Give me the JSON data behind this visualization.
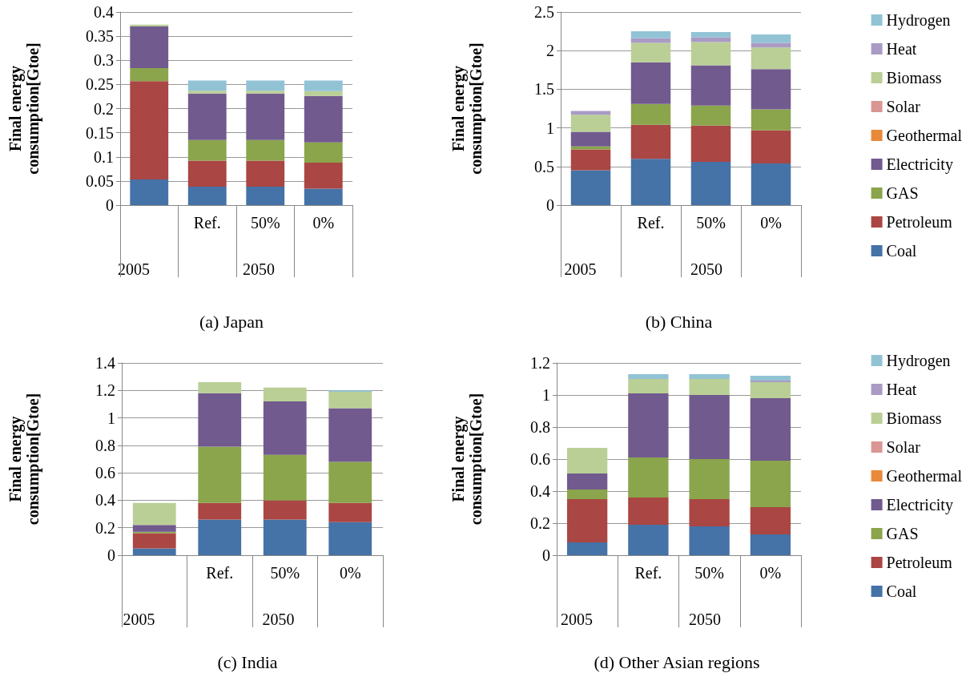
{
  "chart_data": [
    {
      "type": "bar",
      "title": "(a) Japan",
      "ylabel": "Final energy consumption[Gtoe]",
      "categories": [
        null,
        "Ref.",
        "50%",
        "0%"
      ],
      "annotations": [
        "2005",
        "2050"
      ],
      "stacked": true,
      "grid": "y",
      "legend": false,
      "ylim": [
        0,
        0.4
      ],
      "yticks": [
        0,
        0.05,
        0.1,
        0.15,
        0.2,
        0.25,
        0.3,
        0.35,
        0.4
      ],
      "series": [
        {
          "color": "#4572a7",
          "values": [
            0.053,
            0.038,
            0.038,
            0.034
          ]
        },
        {
          "color": "#aa4643",
          "values": [
            0.204,
            0.054,
            0.054,
            0.054
          ]
        },
        {
          "color": "#8aa54b",
          "values": [
            0.027,
            0.043,
            0.043,
            0.042
          ]
        },
        {
          "color": "#715a8e",
          "values": [
            0.086,
            0.096,
            0.096,
            0.096
          ]
        },
        {
          "color": "#bacf96",
          "values": [
            0.004,
            0.006,
            0.006,
            0.01
          ]
        },
        {
          "color": "#92c3d5",
          "values": [
            null,
            0.021,
            0.021,
            0.022
          ]
        }
      ]
    },
    {
      "type": "bar",
      "title": "(b) China",
      "ylabel": "Final energy consumption[Gtoe]",
      "categories": [
        null,
        "Ref.",
        "50%",
        "0%"
      ],
      "annotations": [
        "2005",
        "2050"
      ],
      "stacked": true,
      "grid": "y",
      "legend": "right",
      "ylim": [
        0,
        2.5
      ],
      "yticks": [
        0,
        0.5,
        1,
        1.5,
        2,
        2.5
      ],
      "series": [
        {
          "name": "Coal",
          "color": "#4572a7",
          "values": [
            0.45,
            0.6,
            0.56,
            0.54
          ]
        },
        {
          "name": "Petroleum",
          "color": "#aa4643",
          "values": [
            0.27,
            0.44,
            0.47,
            0.43
          ]
        },
        {
          "name": "GAS",
          "color": "#8aa54b",
          "values": [
            0.04,
            0.27,
            0.26,
            0.27
          ]
        },
        {
          "name": "Electricity",
          "color": "#715a8e",
          "values": [
            0.19,
            0.54,
            0.52,
            0.52
          ]
        },
        {
          "name": "Geothermal",
          "color": "#e9893a",
          "values": [
            0,
            0,
            0,
            0
          ]
        },
        {
          "name": "Solar",
          "color": "#d99694",
          "values": [
            0,
            0,
            0,
            0
          ]
        },
        {
          "name": "Biomass",
          "color": "#bacf96",
          "values": [
            0.22,
            0.25,
            0.3,
            0.28
          ]
        },
        {
          "name": "Heat",
          "color": "#a99bc4",
          "values": [
            0.05,
            0.06,
            0.06,
            0.06
          ]
        },
        {
          "name": "Hydrogen",
          "color": "#92c3d5",
          "values": [
            null,
            0.09,
            0.07,
            0.11
          ]
        }
      ]
    },
    {
      "type": "bar",
      "title": "(c) India",
      "ylabel": "Final energy consumption[Gtoe]",
      "categories": [
        null,
        "Ref.",
        "50%",
        "0%"
      ],
      "annotations": [
        "2005",
        "2050"
      ],
      "stacked": true,
      "grid": "y",
      "legend": false,
      "ylim": [
        0,
        1.4
      ],
      "yticks": [
        0,
        0.2,
        0.4,
        0.6,
        0.8,
        1,
        1.2,
        1.4
      ],
      "series": [
        {
          "color": "#4572a7",
          "values": [
            0.05,
            0.26,
            0.26,
            0.24
          ]
        },
        {
          "color": "#aa4643",
          "values": [
            0.11,
            0.12,
            0.14,
            0.14
          ]
        },
        {
          "color": "#8aa54b",
          "values": [
            0.01,
            0.41,
            0.33,
            0.3
          ]
        },
        {
          "color": "#715a8e",
          "values": [
            0.05,
            0.39,
            0.39,
            0.39
          ]
        },
        {
          "color": "#bacf96",
          "values": [
            0.16,
            0.08,
            0.1,
            0.12
          ]
        },
        {
          "color": "#92c3d5",
          "values": [
            null,
            null,
            null,
            0.01
          ]
        }
      ]
    },
    {
      "type": "bar",
      "title": "(d) Other Asian regions",
      "ylabel": "Final energy consumption[Gtoe]",
      "categories": [
        null,
        "Ref.",
        "50%",
        "0%"
      ],
      "annotations": [
        "2005",
        "2050"
      ],
      "stacked": true,
      "grid": "y",
      "legend": "right",
      "ylim": [
        0,
        1.2
      ],
      "yticks": [
        0,
        0.2,
        0.4,
        0.6,
        0.8,
        1,
        1.2
      ],
      "series": [
        {
          "name": "Coal",
          "color": "#4572a7",
          "values": [
            0.08,
            0.19,
            0.18,
            0.13
          ]
        },
        {
          "name": "Petroleum",
          "color": "#aa4643",
          "values": [
            0.27,
            0.17,
            0.17,
            0.17
          ]
        },
        {
          "name": "GAS",
          "color": "#8aa54b",
          "values": [
            0.06,
            0.25,
            0.25,
            0.29
          ]
        },
        {
          "name": "Electricity",
          "color": "#715a8e",
          "values": [
            0.1,
            0.4,
            0.4,
            0.39
          ]
        },
        {
          "name": "Geothermal",
          "color": "#e9893a",
          "values": [
            0,
            0,
            0,
            0
          ]
        },
        {
          "name": "Solar",
          "color": "#d99694",
          "values": [
            0,
            0,
            0,
            0
          ]
        },
        {
          "name": "Biomass",
          "color": "#bacf96",
          "values": [
            0.16,
            0.09,
            0.1,
            0.1
          ]
        },
        {
          "name": "Heat",
          "color": "#a99bc4",
          "values": [
            null,
            null,
            null,
            0.01
          ]
        },
        {
          "name": "Hydrogen",
          "color": "#92c3d5",
          "values": [
            null,
            0.03,
            0.03,
            0.03
          ]
        }
      ]
    }
  ]
}
